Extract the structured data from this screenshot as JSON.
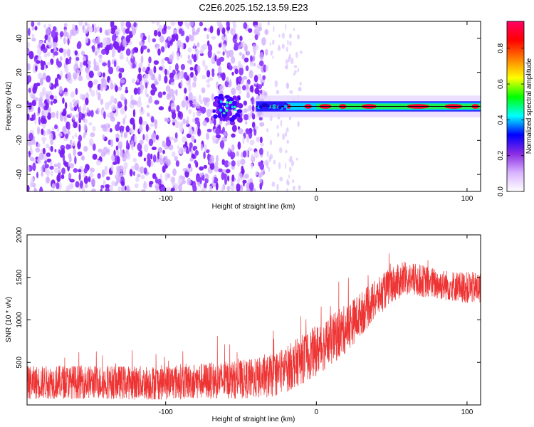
{
  "title": "C2E6.2025.152.13.59.E23",
  "chart_data": [
    {
      "type": "heatmap",
      "xlabel": "Height of straight line (km)",
      "ylabel": "Frequency (Hz)",
      "xlim": [
        -192,
        109
      ],
      "ylim": [
        -50,
        50
      ],
      "xticks": [
        -100,
        0,
        100
      ],
      "xtick_labels": [
        "-100",
        "0",
        "100"
      ],
      "yticks": [
        -40,
        -20,
        0,
        20,
        40
      ],
      "ytick_labels": [
        "-40",
        "-20",
        "0",
        "20",
        "40"
      ],
      "colorbar": {
        "label": "Normalized spectral amplitude",
        "range": [
          0,
          0.95
        ],
        "ticks": [
          0.0,
          0.2,
          0.4,
          0.6,
          0.8
        ],
        "tick_labels": [
          "0.0",
          "0.2",
          "0.4",
          "0.6",
          "0.8"
        ],
        "colormap": [
          "#ffffff",
          "#d9b3ff",
          "#8a2be2",
          "#0000ff",
          "#00ffff",
          "#00ff00",
          "#ffff00",
          "#ff8000",
          "#ff0000",
          "#ff0066"
        ]
      },
      "features": [
        {
          "x_range": [
            -192,
            -33
          ],
          "freq_range": [
            -50,
            50
          ],
          "amplitude": 0.08
        },
        {
          "x_range": [
            -33,
            -10
          ],
          "freq_range": [
            -50,
            50
          ],
          "amplitude": 0.03
        },
        {
          "x_range": [
            -68,
            -50
          ],
          "freq_range": [
            -8,
            6
          ],
          "amplitude": 0.25
        },
        {
          "x_range": [
            -40,
            109
          ],
          "freq_range": [
            -2,
            2
          ],
          "amplitude": 0.9
        }
      ]
    },
    {
      "type": "line",
      "xlabel": "Height of straight line (km)",
      "ylabel": "SNR (10 * v/v)",
      "xlim": [
        -192,
        109
      ],
      "ylim": [
        0,
        2000
      ],
      "xticks": [
        -100,
        0,
        100
      ],
      "xtick_labels": [
        "-100",
        "0",
        "100"
      ],
      "yticks": [
        500,
        1000,
        1500,
        2000
      ],
      "ytick_labels": [
        "500",
        "1000",
        "1500",
        "2000"
      ],
      "color": "#ee3333",
      "series": [
        {
          "x": [
            -192,
            -170,
            -150,
            -130,
            -110,
            -90,
            -70,
            -50,
            -40,
            -30,
            -20,
            -10,
            0,
            10,
            20,
            30,
            40,
            50,
            60,
            70,
            80,
            90,
            100,
            109
          ],
          "mean": [
            260,
            270,
            270,
            265,
            260,
            275,
            285,
            300,
            310,
            340,
            420,
            530,
            640,
            760,
            900,
            1080,
            1250,
            1420,
            1480,
            1460,
            1420,
            1400,
            1380,
            1370
          ],
          "spread": [
            330,
            330,
            330,
            330,
            340,
            350,
            360,
            380,
            400,
            420,
            460,
            480,
            500,
            500,
            480,
            430,
            380,
            360,
            330,
            320,
            310,
            300,
            310,
            320
          ]
        }
      ]
    }
  ]
}
